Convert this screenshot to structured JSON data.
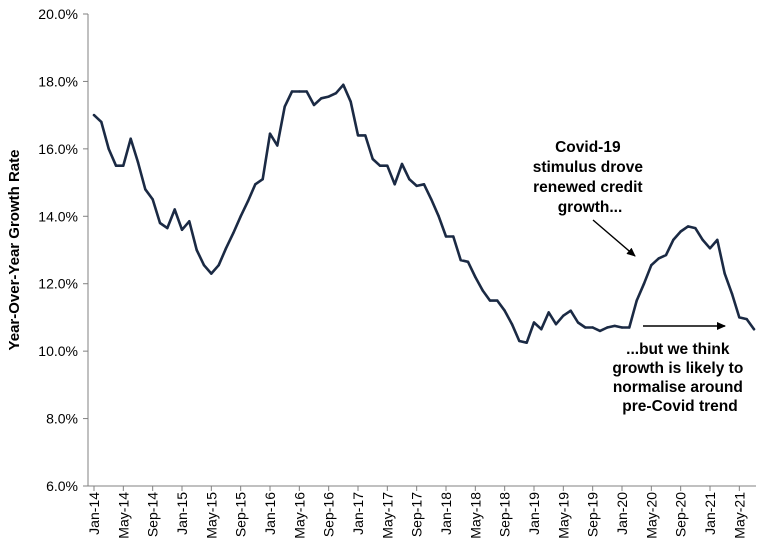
{
  "chart_data": {
    "type": "line",
    "title": "",
    "xlabel": "",
    "ylabel": "Year-Over-Year Growth Rate",
    "ylim": [
      6,
      20
    ],
    "yticks": [
      "6.0%",
      "8.0%",
      "10.0%",
      "12.0%",
      "14.0%",
      "16.0%",
      "18.0%",
      "20.0%"
    ],
    "xtick_labels": [
      "Jan-14",
      "May-14",
      "Sep-14",
      "Jan-15",
      "May-15",
      "Sep-15",
      "Jan-16",
      "May-16",
      "Sep-16",
      "Jan-17",
      "May-17",
      "Sep-17",
      "Jan-18",
      "May-18",
      "Sep-18",
      "Jan-19",
      "May-19",
      "Sep-19",
      "Jan-20",
      "May-20",
      "Sep-20",
      "Jan-21",
      "May-21"
    ],
    "grid": false,
    "line_color": "#1b2a44",
    "series": [
      {
        "name": "",
        "x_start": "Jan-14",
        "frequency": "monthly",
        "values": [
          17.0,
          16.8,
          16.0,
          15.5,
          15.5,
          16.3,
          15.6,
          14.8,
          14.5,
          13.8,
          13.65,
          14.2,
          13.6,
          13.85,
          13.0,
          12.55,
          12.3,
          12.55,
          13.05,
          13.5,
          14.0,
          14.45,
          14.95,
          15.1,
          16.45,
          16.1,
          17.25,
          17.7,
          17.7,
          17.7,
          17.3,
          17.5,
          17.55,
          17.65,
          17.9,
          17.4,
          16.4,
          16.4,
          15.7,
          15.5,
          15.5,
          14.95,
          15.55,
          15.1,
          14.9,
          14.95,
          14.5,
          14.0,
          13.4,
          13.4,
          12.7,
          12.65,
          12.2,
          11.8,
          11.5,
          11.5,
          11.2,
          10.8,
          10.3,
          10.25,
          10.85,
          10.65,
          11.15,
          10.8,
          11.05,
          11.2,
          10.85,
          10.7,
          10.7,
          10.6,
          10.7,
          10.75,
          10.7,
          10.7,
          11.5,
          12.0,
          12.55,
          12.75,
          12.85,
          13.3,
          13.55,
          13.7,
          13.65,
          13.3,
          13.05,
          13.3,
          12.3,
          11.7,
          11.0,
          10.95,
          10.65
        ]
      }
    ],
    "annotations": [
      {
        "lines": [
          "Covid-19",
          "stimulus drove",
          "renewed credit",
          "growth..."
        ]
      },
      {
        "lines": [
          "...but we think",
          "growth is likely to",
          "normalise around",
          "pre-Covid trend"
        ]
      }
    ]
  }
}
